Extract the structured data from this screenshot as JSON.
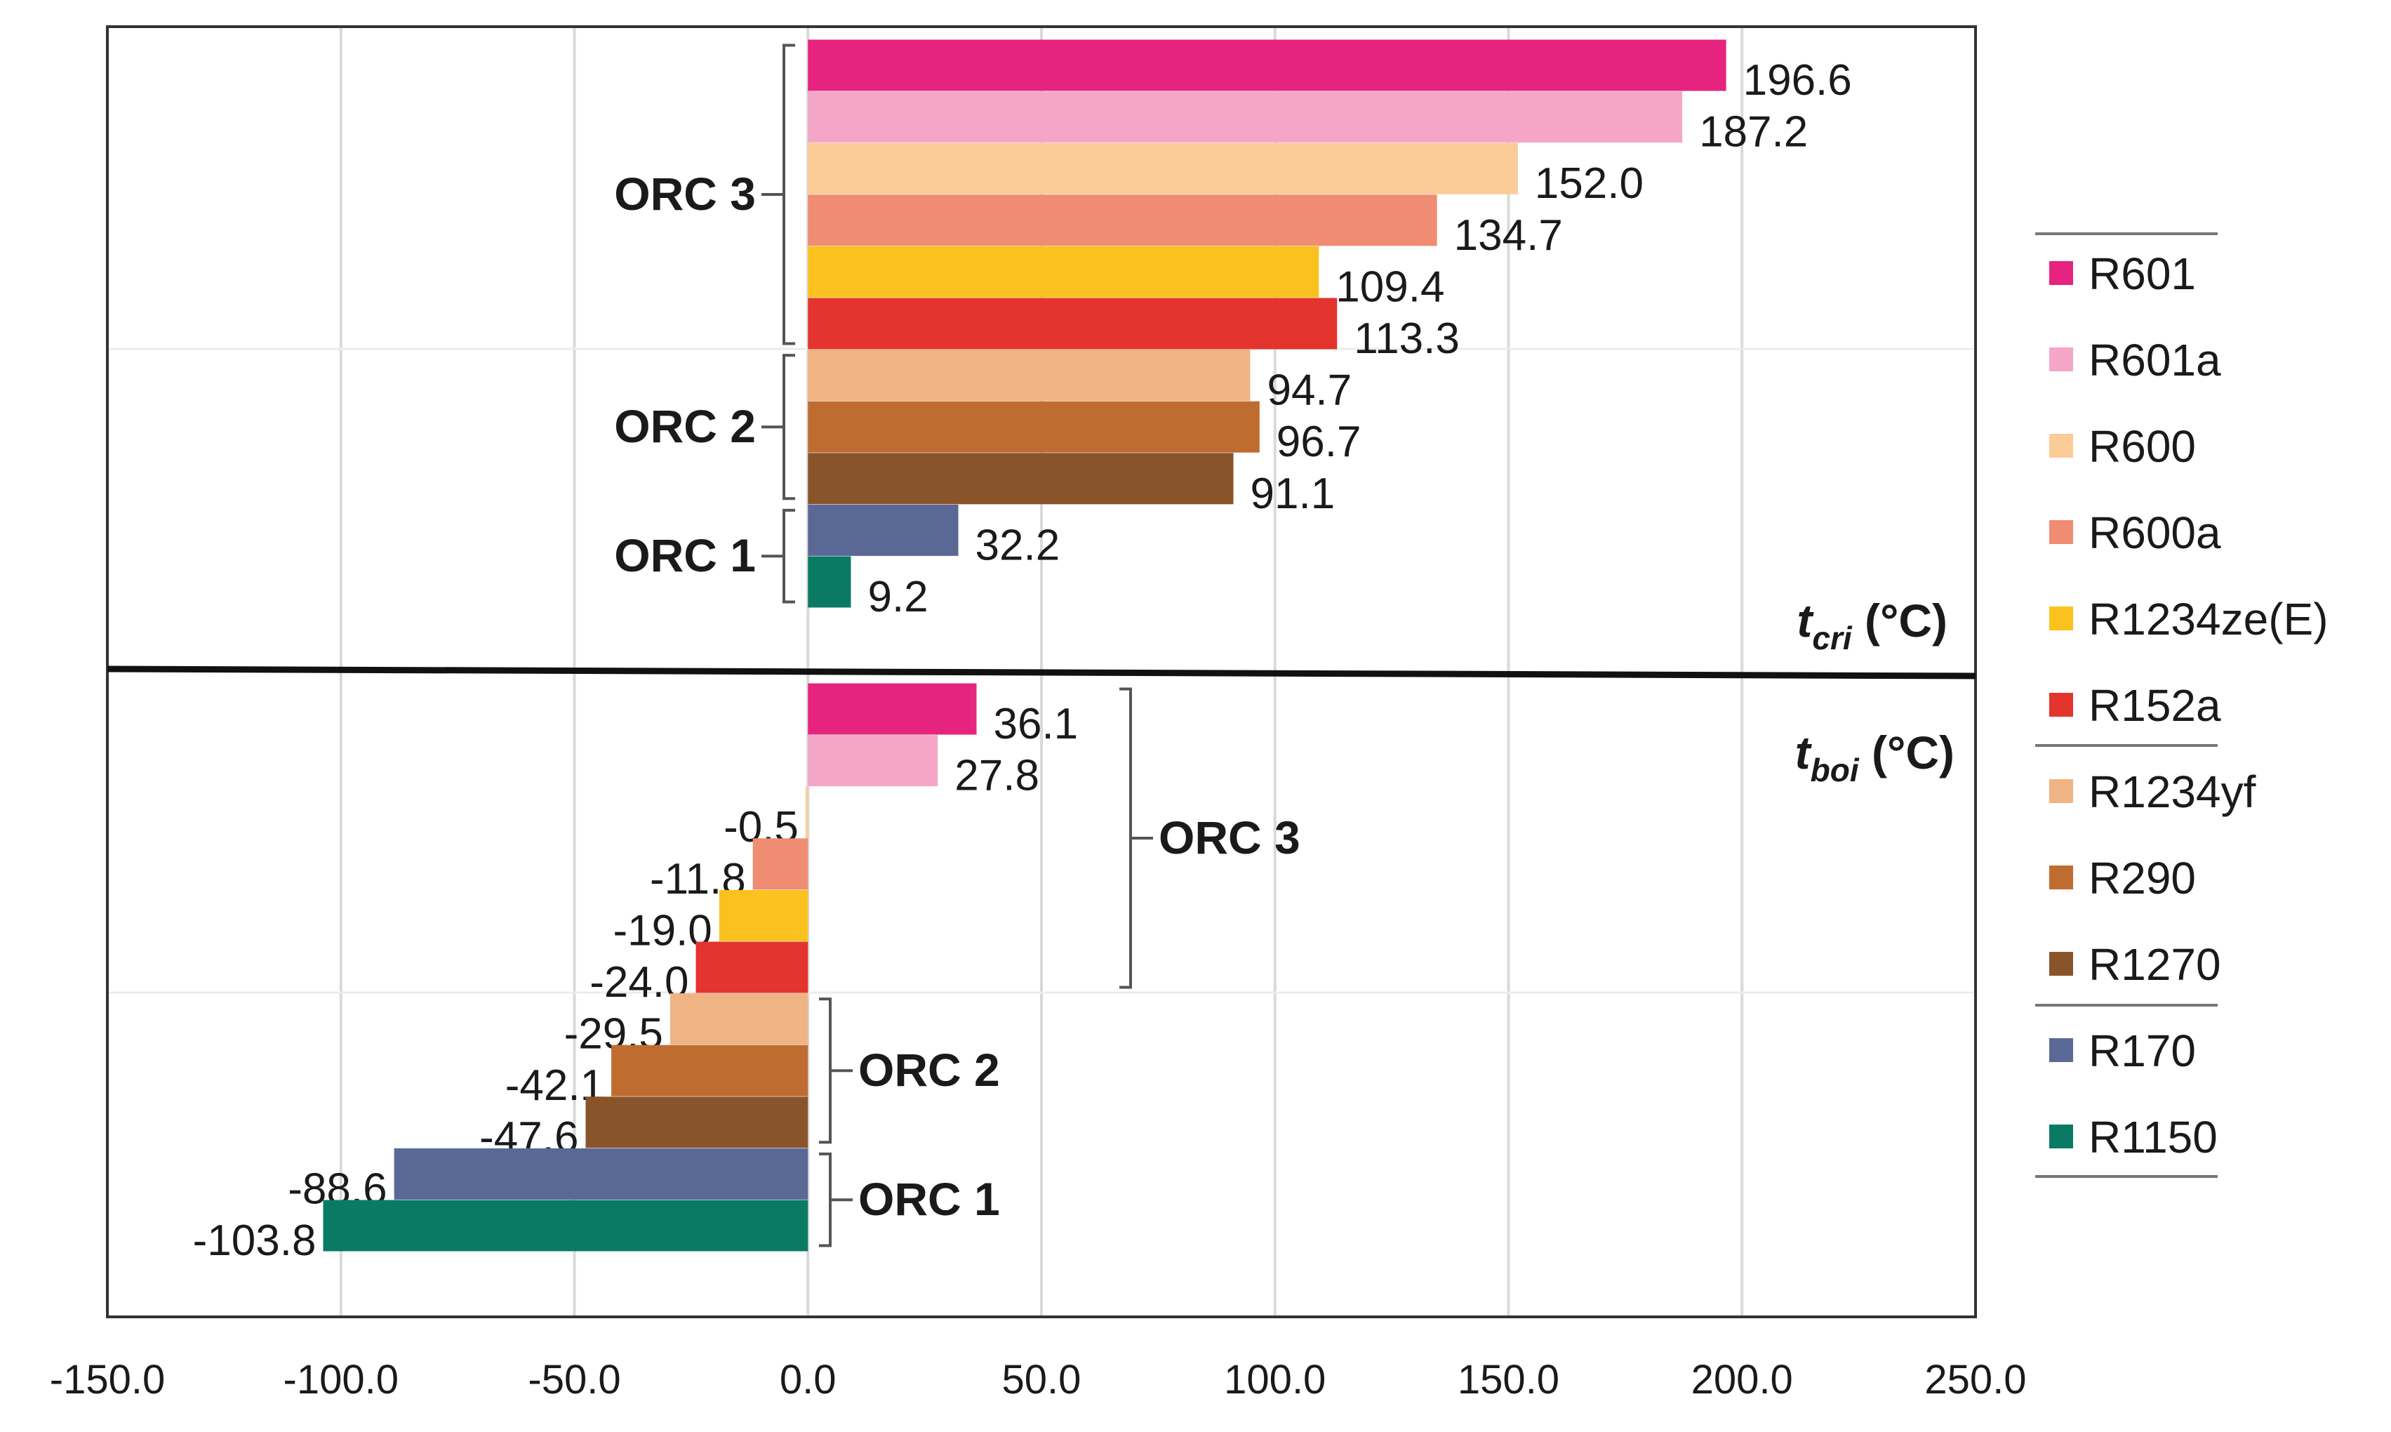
{
  "chart_data": {
    "type": "bar",
    "orientation": "horizontal",
    "categories": [
      "R601",
      "R601a",
      "R600",
      "R600a",
      "R1234ze(E)",
      "R152a",
      "R1234yf",
      "R290",
      "R1270",
      "R170",
      "R1150"
    ],
    "series": [
      {
        "name": "t_cri (°C)",
        "section": "top",
        "values": [
          196.6,
          187.2,
          152.0,
          134.7,
          109.4,
          113.3,
          94.7,
          96.7,
          91.1,
          32.2,
          9.2
        ],
        "labels": [
          "196.6",
          "187.2",
          "152.0",
          "134.7",
          "109.4",
          "113.3",
          "94.7",
          "96.7",
          "91.1",
          "32.2",
          "9.2"
        ]
      },
      {
        "name": "t_boi (°C)",
        "section": "bottom",
        "values": [
          36.1,
          27.8,
          -0.5,
          -11.8,
          -19.0,
          -24.0,
          -29.5,
          -42.1,
          -47.6,
          -88.6,
          -103.8
        ],
        "labels": [
          "36.1",
          "27.8",
          "-0.5",
          "-11.8",
          "-19.0",
          "-24.0",
          "-29.5",
          "-42.1",
          "-47.6",
          "-88.6",
          "-103.8"
        ]
      }
    ],
    "colors": [
      "#e6247f",
      "#f5a6c8",
      "#fbcb98",
      "#f08c72",
      "#fbc21f",
      "#e3342d",
      "#f0b383",
      "#bf6c31",
      "#8a542a",
      "#5a6896",
      "#0b7a64"
    ],
    "xlim": [
      -150,
      250
    ],
    "xticks": [
      "-150.0",
      "-100.0",
      "-50.0",
      "0.0",
      "50.0",
      "100.0",
      "150.0",
      "200.0",
      "250.0"
    ],
    "xtick_values": [
      -150,
      -100,
      -50,
      0,
      50,
      100,
      150,
      200,
      250
    ],
    "section_titles": {
      "top": {
        "var": "t",
        "sub": "cri",
        "unit": " (°C)"
      },
      "bottom": {
        "var": "t",
        "sub": "boi",
        "unit": " (°C)"
      }
    },
    "groups": [
      {
        "label": "ORC 3",
        "from": 0,
        "to": 5
      },
      {
        "label": "ORC 2",
        "from": 6,
        "to": 8
      },
      {
        "label": "ORC 1",
        "from": 9,
        "to": 10
      }
    ],
    "legend": {
      "position": "right",
      "entries": [
        "R601",
        "R601a",
        "R600",
        "R600a",
        "R1234ze(E)",
        "R152a",
        "R1234yf",
        "R290",
        "R1270",
        "R170",
        "R1150"
      ]
    },
    "grid": true
  }
}
